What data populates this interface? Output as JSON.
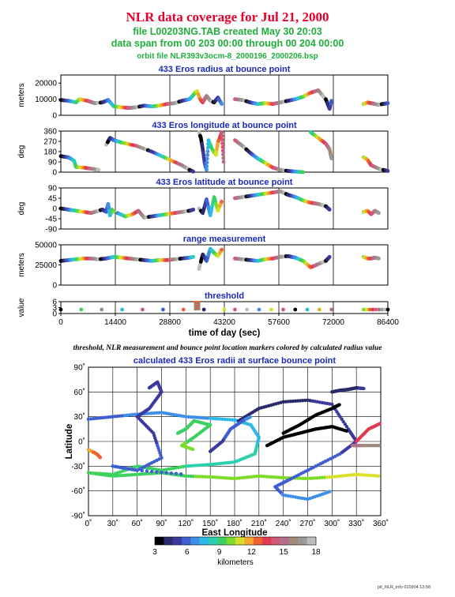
{
  "header": {
    "title": "NLR data coverage for Jul 21, 2000",
    "file_line": "file L00203NG.TAB created May 30 20:03",
    "span_line": "data span from 00 203 00:00 through 00 204 00:00",
    "orbit_line": "orbit file NLR393v3ocm-8_2000196_2000206.bsp"
  },
  "caption": "threshold, NLR measurement and bounce point location markers colored by calculated radius value",
  "footer_stamp": "plt_NLR_info 010904 13:58",
  "colors": {
    "title": "#e8002a",
    "subtitle": "#1fae3b",
    "panel_title": "#1a2ab8",
    "colorbar": [
      "#000000",
      "#2a2a6a",
      "#3b3b9e",
      "#3f5fd0",
      "#3f8fe8",
      "#2fb8e8",
      "#2ad0b0",
      "#3cd060",
      "#7ddc2a",
      "#d8e02a",
      "#f0a830",
      "#f06030",
      "#e03a50",
      "#d05a7a",
      "#b0708a",
      "#a08a7a",
      "#9a9a9a",
      "#bdbdbd"
    ]
  },
  "chart_data": [
    {
      "type": "scatter",
      "title": "433 Eros radius at bounce point",
      "ylabel": "meters",
      "ylim": [
        0,
        25000
      ],
      "yticks": [
        "0",
        "10000",
        "20000"
      ],
      "xlim": [
        0,
        86400
      ],
      "series": [
        {
          "x": [
            0,
            2000,
            4000,
            5000,
            7000,
            9000,
            11000,
            12500,
            14000,
            16000,
            18000,
            20000,
            22000,
            24000,
            26000,
            28000,
            30000,
            32000,
            34000,
            34800,
            35500,
            36000,
            36800,
            37500,
            38500,
            39500,
            40500,
            41500,
            42500
          ],
          "y": [
            9500,
            9000,
            8000,
            10000,
            9000,
            7500,
            8000,
            9500,
            5500,
            5000,
            4500,
            5000,
            6000,
            5500,
            6000,
            7000,
            7500,
            9000,
            10000,
            12000,
            14000,
            15000,
            10000,
            8000,
            12000,
            9000,
            8000,
            11000,
            7000
          ]
        },
        {
          "x": [
            46000,
            48000,
            50000,
            52000,
            54000,
            56000,
            58000,
            60000,
            62000,
            64000,
            66000,
            68000,
            70000,
            71000,
            71500
          ],
          "y": [
            10000,
            9500,
            8000,
            7000,
            7500,
            7000,
            8000,
            9000,
            10000,
            11500,
            14000,
            15500,
            10000,
            4000,
            9000
          ]
        },
        {
          "x": [
            80000,
            81000,
            82000,
            83000,
            84000,
            85000,
            86400
          ],
          "y": [
            7000,
            8000,
            7500,
            7000,
            6500,
            7000,
            7500
          ]
        }
      ]
    },
    {
      "type": "scatter",
      "title": "433 Eros longitude at bounce point",
      "ylabel": "deg",
      "ylim": [
        0,
        360
      ],
      "yticks": [
        "0",
        "90",
        "180",
        "270",
        "360"
      ],
      "xlim": [
        0,
        86400
      ],
      "series": [
        {
          "x": [
            0,
            2000,
            3500,
            4000,
            6000,
            8000,
            10000
          ],
          "y": [
            140,
            130,
            100,
            45,
            40,
            30,
            20
          ]
        },
        {
          "x": [
            12000,
            13000,
            14000,
            15000,
            16000,
            20000,
            24000,
            28000,
            32000,
            34000,
            35000
          ],
          "y": [
            240,
            300,
            280,
            270,
            260,
            230,
            180,
            120,
            60,
            20,
            5
          ]
        },
        {
          "x": [
            36500,
            37000,
            37500,
            38000,
            38500,
            39000,
            40000,
            41000,
            41500,
            42000,
            42500,
            43000
          ],
          "y": [
            350,
            300,
            200,
            80,
            20,
            280,
            200,
            150,
            260,
            300,
            350,
            90
          ]
        },
        {
          "x": [
            46000,
            48000,
            50000,
            52000,
            54000,
            56000,
            58000,
            60000,
            62000,
            64000
          ],
          "y": [
            280,
            230,
            170,
            120,
            80,
            40,
            20,
            10,
            5,
            0
          ]
        },
        {
          "x": [
            66000,
            68000,
            70000,
            71000,
            71500
          ],
          "y": [
            350,
            300,
            250,
            200,
            120
          ]
        },
        {
          "x": [
            80000,
            81000,
            82000,
            84000,
            86400
          ],
          "y": [
            130,
            110,
            60,
            30,
            10
          ]
        }
      ]
    },
    {
      "type": "scatter",
      "title": "433 Eros latitude at bounce point",
      "ylabel": "deg",
      "ylim": [
        -90,
        90
      ],
      "yticks": [
        "-90",
        "-45",
        "0",
        "45",
        "90"
      ],
      "xlim": [
        0,
        86400
      ],
      "series": [
        {
          "x": [
            0,
            2000,
            4000,
            6000,
            8000,
            10000,
            11000,
            12000,
            12500,
            13000,
            13500,
            14000
          ],
          "y": [
            0,
            -5,
            -10,
            -15,
            -20,
            -10,
            -5,
            -15,
            20,
            -30,
            -5,
            -15
          ]
        },
        {
          "x": [
            15000,
            17000,
            19000,
            20500,
            22000,
            24000,
            26000,
            28000,
            30000,
            32000,
            34000,
            35000
          ],
          "y": [
            -20,
            -35,
            -25,
            -10,
            -40,
            -35,
            -30,
            -25,
            -20,
            -15,
            -10,
            -5
          ]
        },
        {
          "x": [
            36500,
            37500,
            38500,
            39500,
            40500,
            41500,
            42500
          ],
          "y": [
            0,
            -20,
            40,
            -30,
            50,
            -10,
            30
          ]
        },
        {
          "x": [
            46000,
            48000,
            50000,
            52000,
            54000,
            56000,
            58000,
            60000,
            62000,
            64000,
            66000,
            68000,
            70000,
            71000
          ],
          "y": [
            45,
            50,
            55,
            60,
            65,
            70,
            75,
            60,
            50,
            35,
            25,
            20,
            10,
            -5
          ]
        },
        {
          "x": [
            80000,
            81000,
            82000,
            83000,
            84000
          ],
          "y": [
            -15,
            -10,
            -25,
            -10,
            -20
          ]
        }
      ]
    },
    {
      "type": "scatter",
      "title": "range measurement",
      "ylabel": "meters",
      "ylim": [
        0,
        50000
      ],
      "yticks": [
        "0",
        "25000",
        "50000"
      ],
      "xlim": [
        0,
        86400
      ],
      "series": [
        {
          "x": [
            0,
            2000,
            4000,
            6000,
            8000,
            10000,
            12000,
            14000,
            16000,
            18000,
            20000,
            22000,
            24000,
            26000,
            28000,
            30000,
            32000,
            34000,
            35000
          ],
          "y": [
            30000,
            31000,
            32000,
            33000,
            33000,
            32000,
            33000,
            35000,
            34000,
            33000,
            32000,
            31000,
            30000,
            31000,
            31000,
            32000,
            33000,
            34000,
            35000
          ]
        },
        {
          "x": [
            36500,
            37500,
            38500,
            39500,
            40500,
            41500,
            42500
          ],
          "y": [
            20000,
            38000,
            30000,
            45000,
            40000,
            36000,
            44000
          ]
        },
        {
          "x": [
            46000,
            48000,
            50000,
            52000,
            54000,
            56000,
            58000,
            60000,
            62000,
            64000,
            66000,
            68000,
            70000,
            71000
          ],
          "y": [
            33000,
            32000,
            31000,
            30000,
            32000,
            33000,
            35000,
            36000,
            34000,
            30000,
            22000,
            26000,
            30000,
            35000
          ]
        },
        {
          "x": [
            80000,
            81000,
            82000,
            83000,
            84000
          ],
          "y": [
            35000,
            33000,
            33000,
            34000,
            33000
          ]
        }
      ]
    },
    {
      "type": "scatter",
      "title": "threshold",
      "ylabel": "value",
      "ylim": [
        0,
        6
      ],
      "yticks": [
        "0",
        "3",
        "6"
      ],
      "xlim": [
        0,
        86400
      ],
      "xticks": [
        "0",
        "14400",
        "28800",
        "43200",
        "57600",
        "72000",
        "86400"
      ],
      "xlabel": "time of day (sec)",
      "series": [
        {
          "x": [
            0,
            43200
          ],
          "y": [
            2,
            2
          ]
        },
        {
          "x": [
            46000,
            71500
          ],
          "y": [
            2,
            2
          ]
        },
        {
          "x": [
            80000,
            86400
          ],
          "y": [
            2,
            2
          ]
        },
        {
          "x": [
            36000,
            36000,
            36000,
            36000,
            36000
          ],
          "y": [
            2,
            3,
            4,
            5,
            6
          ]
        }
      ]
    },
    {
      "type": "scatter",
      "title": "calculated 433 Eros radii at surface bounce point",
      "xlabel": "East Longitude",
      "ylabel": "Latitude",
      "xlim": [
        0,
        360
      ],
      "ylim": [
        -90,
        90
      ],
      "xticks": [
        "0˚",
        "30˚",
        "60˚",
        "90˚",
        "120˚",
        "150˚",
        "180˚",
        "210˚",
        "240˚",
        "270˚",
        "300˚",
        "330˚",
        "360˚"
      ],
      "yticks": [
        "-90˚",
        "-60˚",
        "-30˚",
        "0˚",
        "30˚",
        "60˚",
        "90˚"
      ],
      "colorbar": {
        "label": "kilometers",
        "ticks": [
          "3",
          "6",
          "9",
          "12",
          "15",
          "18"
        ],
        "range": [
          3,
          18
        ]
      }
    }
  ]
}
